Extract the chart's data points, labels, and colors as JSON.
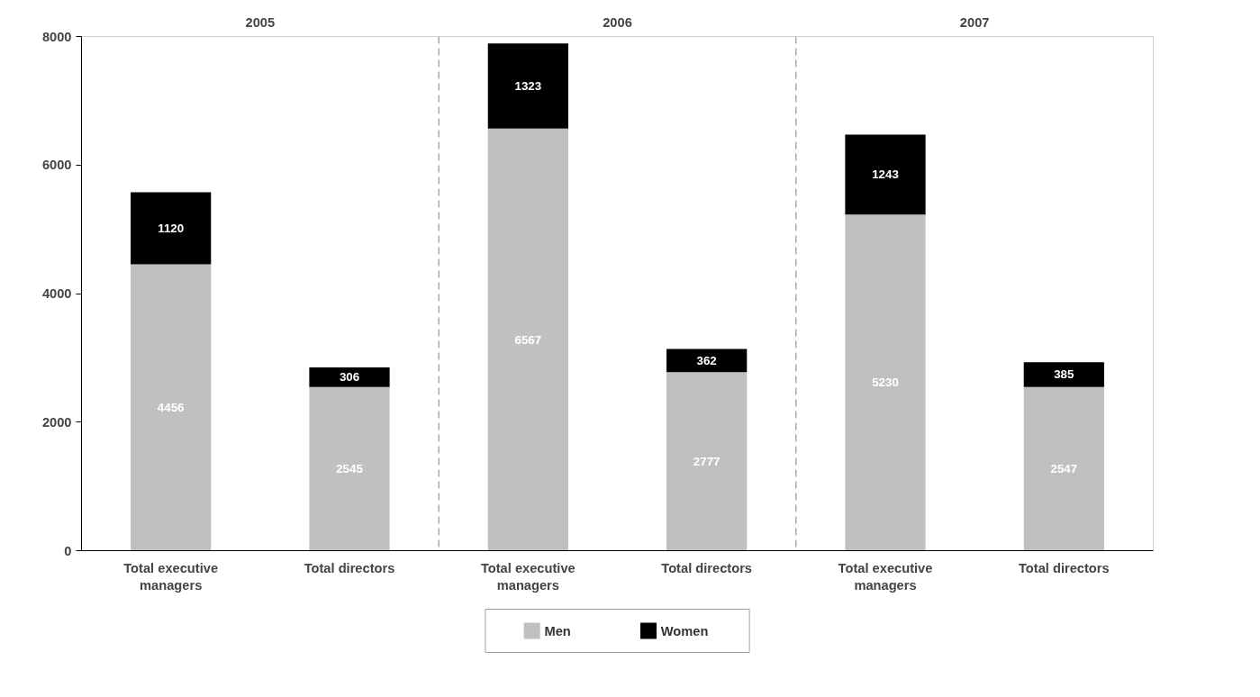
{
  "chart_data": {
    "type": "bar",
    "stacked": true,
    "categories": [
      "Total executive managers",
      "Total directors",
      "Total executive managers",
      "Total directors",
      "Total executive managers",
      "Total directors"
    ],
    "series": [
      {
        "name": "Men",
        "color": "#c0c0c0",
        "values": [
          4456,
          2545,
          6567,
          2777,
          5230,
          2547
        ]
      },
      {
        "name": "Women",
        "color": "#000000",
        "values": [
          1120,
          306,
          1323,
          362,
          1243,
          385
        ]
      }
    ],
    "annotations": [
      "2005",
      "2006",
      "2007"
    ],
    "ylim": [
      0,
      8000
    ],
    "yticks": [
      0,
      2000,
      4000,
      6000,
      8000
    ],
    "data_labels": true,
    "grid": false,
    "legend": "bottom"
  }
}
